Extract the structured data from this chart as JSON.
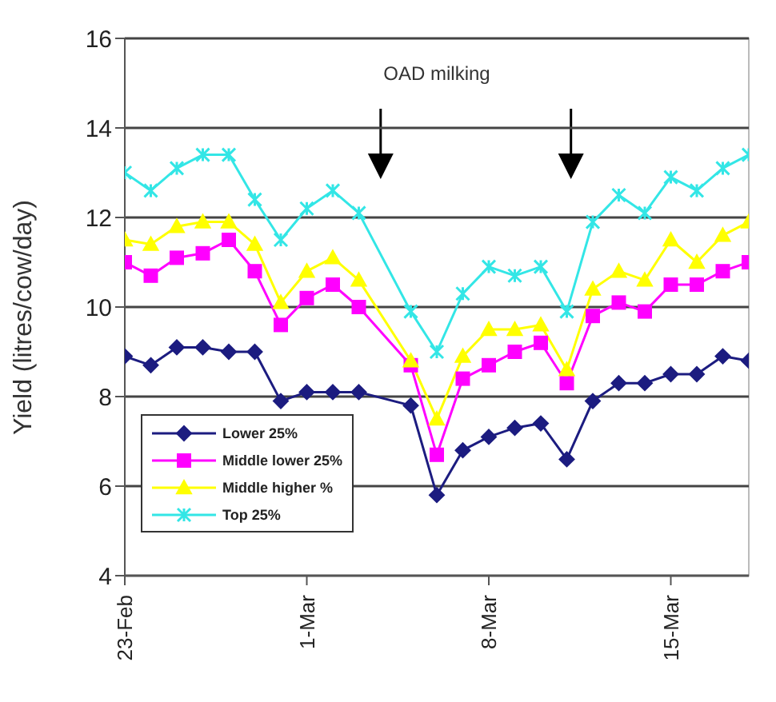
{
  "chart_data": {
    "type": "line",
    "ylabel": "Yield (litres/cow/day)",
    "x": [
      "--02-23",
      "--02-24",
      "--02-25",
      "--02-26",
      "--02-27",
      "--02-28",
      "--02-29",
      "--03-01",
      "--03-02",
      "--03-03",
      "--03-05",
      "--03-06",
      "--03-07",
      "--03-08",
      "--03-09",
      "--03-10",
      "--03-11",
      "--03-12",
      "--03-13",
      "--03-14",
      "--03-15",
      "--03-16",
      "--03-17",
      "--03-18"
    ],
    "series": [
      {
        "name": "Lower 25%",
        "color": "#1c1c80",
        "marker": "diamond",
        "values": [
          8.9,
          8.7,
          9.1,
          9.1,
          9.0,
          9.0,
          7.9,
          8.1,
          8.1,
          8.1,
          7.8,
          5.8,
          6.8,
          7.1,
          7.3,
          7.4,
          6.6,
          7.9,
          8.3,
          8.3,
          8.5,
          8.5,
          8.9,
          8.8
        ]
      },
      {
        "name": "Middle lower 25%",
        "color": "#ff00ff",
        "marker": "square",
        "values": [
          11.0,
          10.7,
          11.1,
          11.2,
          11.5,
          10.8,
          9.6,
          10.2,
          10.5,
          10.0,
          8.7,
          6.7,
          8.4,
          8.7,
          9.0,
          9.2,
          8.3,
          9.8,
          10.1,
          9.9,
          10.5,
          10.5,
          10.8,
          11.0
        ]
      },
      {
        "name": "Middle higher %",
        "color": "#ffff00",
        "marker": "triangle",
        "values": [
          11.5,
          11.4,
          11.8,
          11.9,
          11.9,
          11.4,
          10.1,
          10.8,
          11.1,
          10.6,
          8.8,
          7.5,
          8.9,
          9.5,
          9.5,
          9.6,
          8.6,
          10.4,
          10.8,
          10.6,
          11.5,
          11.0,
          11.6,
          11.9
        ]
      },
      {
        "name": "Top 25%",
        "color": "#33e6e6",
        "marker": "cross",
        "values": [
          13.0,
          12.6,
          13.1,
          13.4,
          13.4,
          12.4,
          11.5,
          12.2,
          12.6,
          12.1,
          9.9,
          9.0,
          10.3,
          10.9,
          10.7,
          10.9,
          9.9,
          11.9,
          12.5,
          12.1,
          12.9,
          12.6,
          13.1,
          13.4
        ]
      }
    ],
    "xlim": [
      "--02-23",
      "--03-18"
    ],
    "xticks": [
      {
        "value": "--02-23",
        "label": "23-Feb"
      },
      {
        "value": "--03-01",
        "label": "1-Mar"
      },
      {
        "value": "--03-08",
        "label": "8-Mar"
      },
      {
        "value": "--03-15",
        "label": "15-Mar"
      }
    ],
    "ylim": [
      4,
      16
    ],
    "yticks": [
      4,
      6,
      8,
      10,
      12,
      14,
      16
    ],
    "grid": "y",
    "legend": "bottom left",
    "annotations": [
      "OAD milking"
    ]
  }
}
